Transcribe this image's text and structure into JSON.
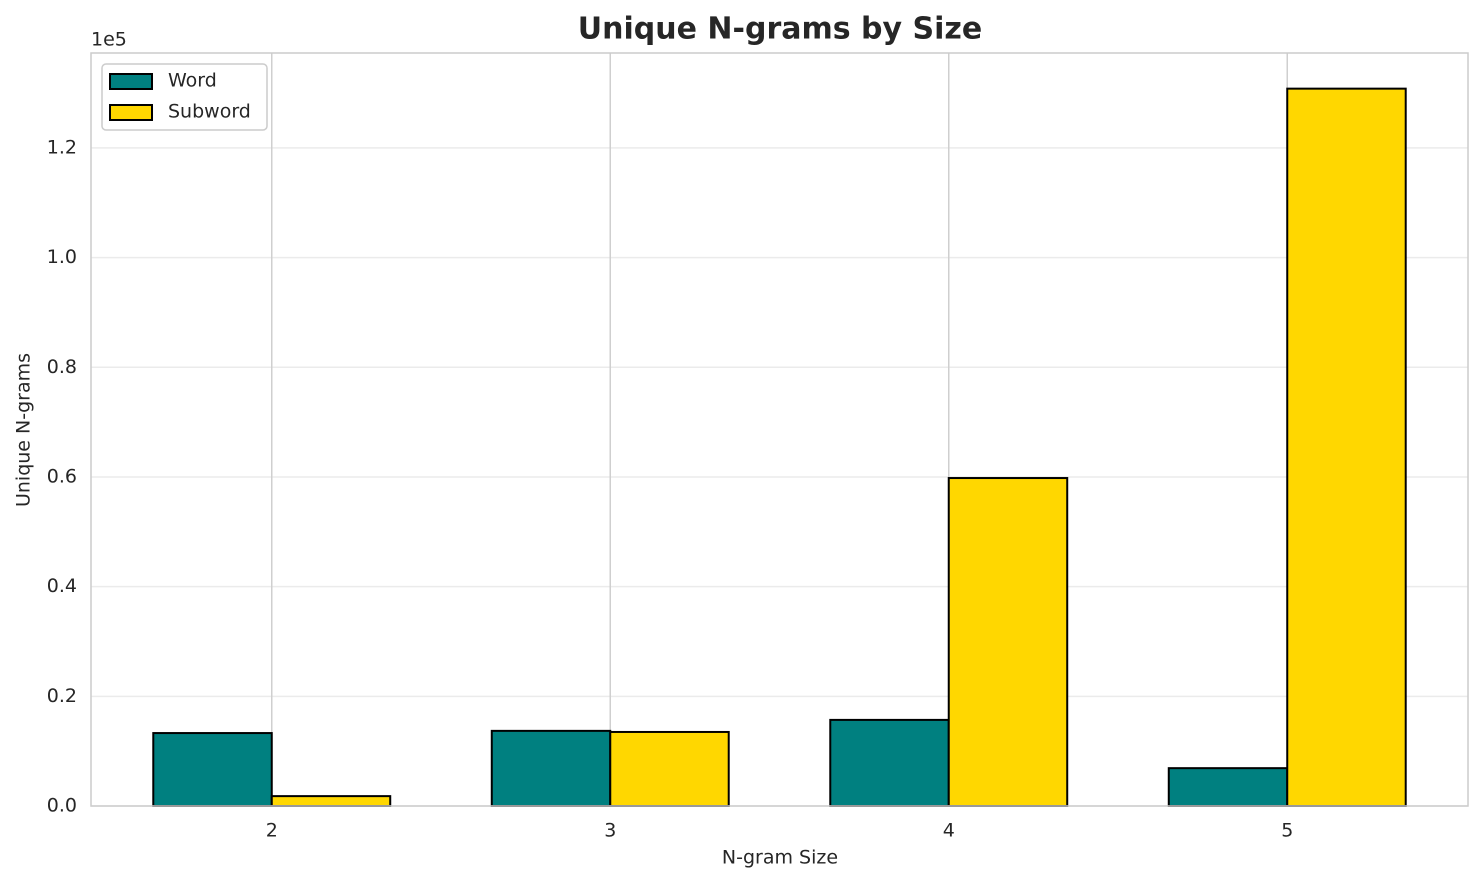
{
  "chart_data": {
    "type": "bar",
    "title": "Unique N-grams by Size",
    "x_label": "N-gram Size",
    "y_label": "Unique N-grams",
    "y_offset_label": "1e5",
    "categories": [
      "2",
      "3",
      "4",
      "5"
    ],
    "series": [
      {
        "name": "Word",
        "color": "#008080",
        "values": [
          13300,
          13700,
          15700,
          6900
        ]
      },
      {
        "name": "Subword",
        "color": "#ffd700",
        "values": [
          1800,
          13500,
          59800,
          130800
        ]
      }
    ],
    "ylim": [
      0,
      137300
    ],
    "yticks": [
      {
        "value": 0,
        "label": "0.0"
      },
      {
        "value": 20000,
        "label": "0.2"
      },
      {
        "value": 40000,
        "label": "0.4"
      },
      {
        "value": 60000,
        "label": "0.6"
      },
      {
        "value": 80000,
        "label": "0.8"
      },
      {
        "value": 100000,
        "label": "1.0"
      },
      {
        "value": 120000,
        "label": "1.2"
      }
    ],
    "grid": true,
    "legend": "upper left"
  }
}
